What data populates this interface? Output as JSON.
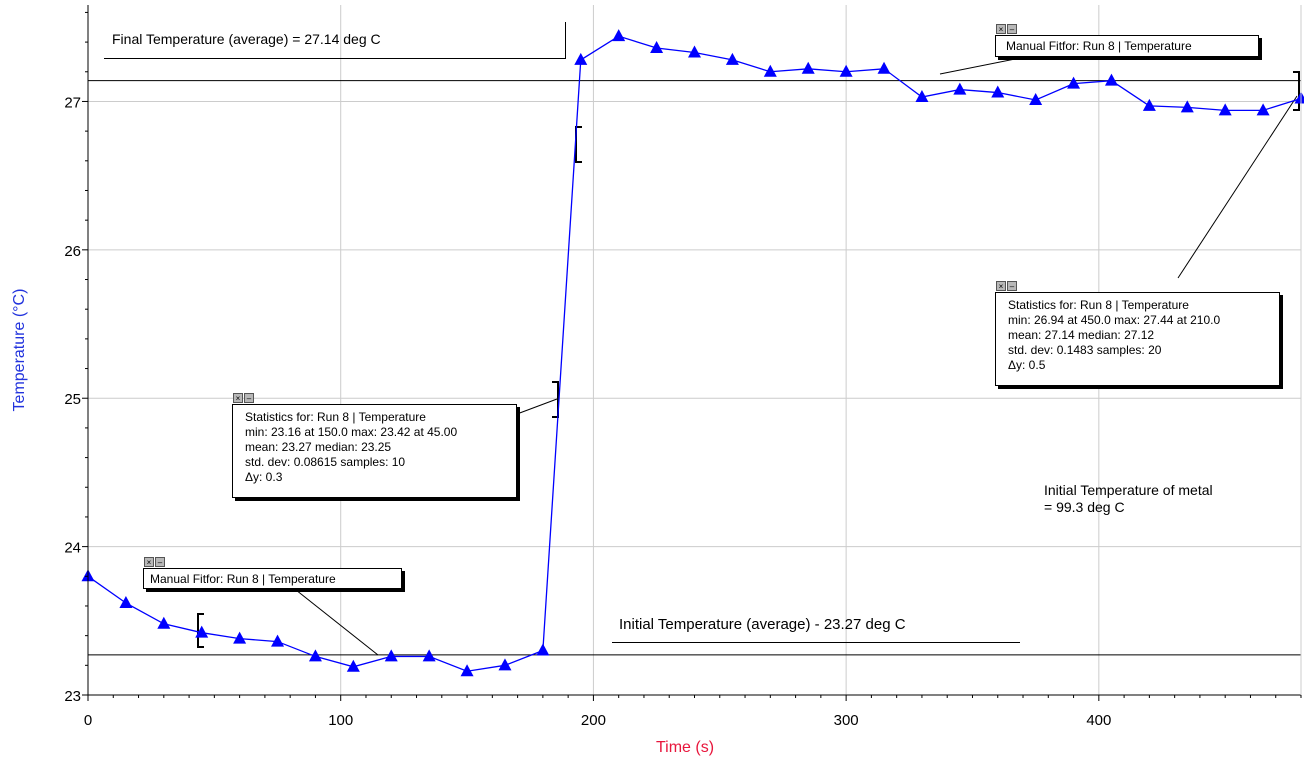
{
  "chart_data": {
    "type": "line",
    "xlabel": "Time (s)",
    "ylabel": "Temperature (°C)",
    "xlim": [
      0,
      480
    ],
    "ylim": [
      23,
      27.65
    ],
    "x_ticks": [
      "0",
      "100",
      "200",
      "300",
      "400"
    ],
    "y_ticks": [
      "23",
      "24",
      "25",
      "26",
      "27"
    ],
    "grid": true,
    "series": [
      {
        "marker": "triangle",
        "color": "#0000ff",
        "x": [
          0,
          15,
          30,
          45,
          60,
          75,
          90,
          105,
          120,
          135,
          150,
          165,
          180,
          195,
          210,
          225,
          240,
          255,
          270,
          285,
          300,
          315,
          330,
          345,
          360,
          375,
          390,
          405,
          420,
          435,
          450,
          465,
          480
        ],
        "y": [
          23.8,
          23.62,
          23.48,
          23.42,
          23.38,
          23.36,
          23.26,
          23.19,
          23.26,
          23.26,
          23.16,
          23.2,
          23.3,
          27.28,
          27.44,
          27.36,
          27.33,
          27.28,
          27.2,
          27.22,
          27.2,
          27.22,
          27.03,
          27.08,
          27.06,
          27.01,
          27.12,
          27.14,
          26.97,
          26.96,
          26.94,
          26.94,
          27.02
        ]
      }
    ],
    "reference_lines": [
      {
        "name": "final-average",
        "y": 27.14
      },
      {
        "name": "initial-average",
        "y": 23.27
      }
    ],
    "annotations": {
      "final_temperature": "Final Temperature (average) = 27.14 deg C",
      "initial_temperature": "Initial Temperature (average) - 23.27 deg C",
      "initial_metal_line1": "Initial Temperature of metal",
      "initial_metal_line2": "= 99.3 deg C"
    }
  },
  "manual_fit_top": {
    "label": "Manual Fitfor: Run 8 | Temperature"
  },
  "manual_fit_bottom": {
    "label": "Manual Fitfor: Run 8 | Temperature"
  },
  "stats_left": {
    "title": "Statistics for: Run 8 | Temperature",
    "line2": "min: 23.16 at 150.0 max: 23.42 at 45.00",
    "line3": "mean: 23.27 median: 23.25",
    "line4": "std. dev: 0.08615 samples: 10",
    "delta": "Δy: 0.3"
  },
  "stats_right": {
    "title": "Statistics for: Run 8 | Temperature",
    "line2": "min: 26.94 at 450.0 max: 27.44 at 210.0",
    "line3": "mean: 27.14 median: 27.12",
    "line4": "std. dev: 0.1483 samples: 20",
    "delta": "Δy: 0.5"
  },
  "controls": {
    "close": "×",
    "minimize": "–"
  },
  "colors": {
    "series": "#0000ff",
    "ylabel": "#2233dd",
    "xlabel": "#e8163c",
    "grid": "#cccccc"
  }
}
